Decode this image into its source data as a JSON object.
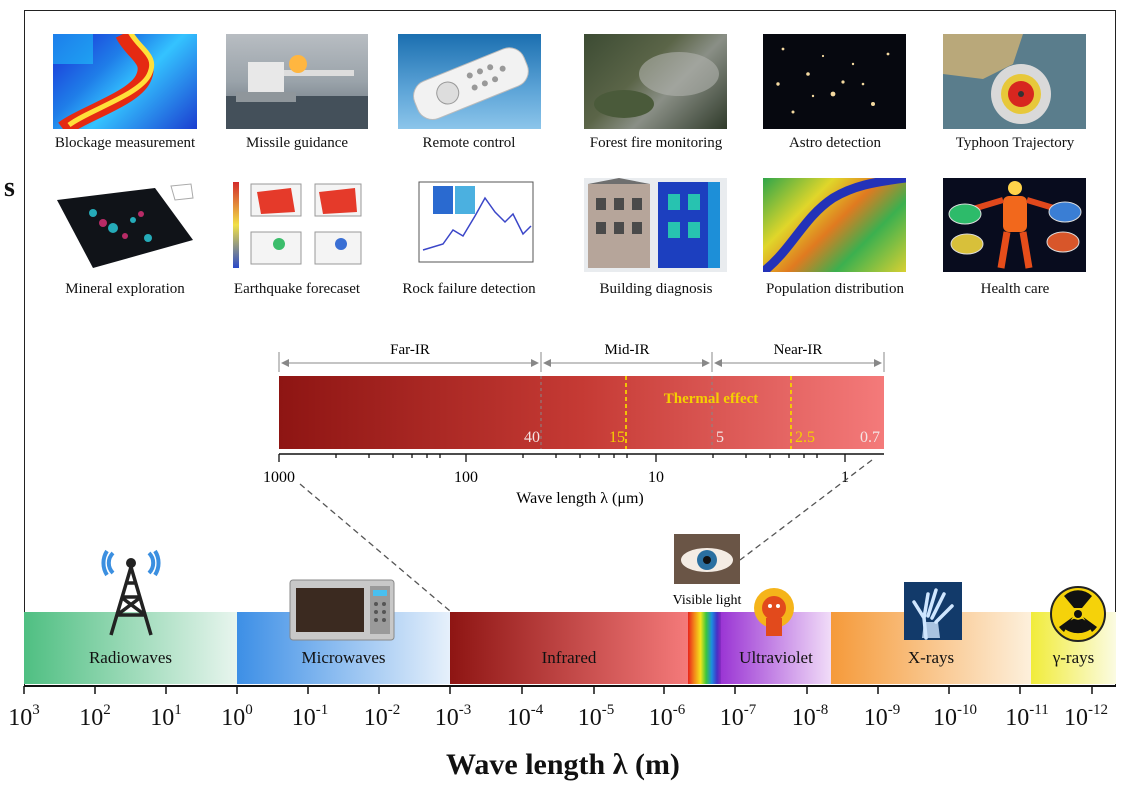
{
  "applications": [
    {
      "id": "blockage",
      "caption": "Blockage measurement",
      "icon": "blockage-thermal-image"
    },
    {
      "id": "missile",
      "caption": "Missile guidance",
      "icon": "missile-launch-photo"
    },
    {
      "id": "remote",
      "caption": "Remote control",
      "icon": "remote-control-photo"
    },
    {
      "id": "forest",
      "caption": "Forest fire monitoring",
      "icon": "forest-fire-satellite-image"
    },
    {
      "id": "astro",
      "caption": "Astro detection",
      "icon": "night-sky-image"
    },
    {
      "id": "typhoon",
      "caption": "Typhoon Trajectory",
      "icon": "typhoon-satellite-image"
    },
    {
      "id": "mineral",
      "caption": "Mineral exploration",
      "icon": "mineral-terrain-map"
    },
    {
      "id": "earthquake",
      "caption": "Earthquake forecaset",
      "icon": "earthquake-heat-maps"
    },
    {
      "id": "rock",
      "caption": "Rock failure detection",
      "icon": "rock-failure-chart"
    },
    {
      "id": "building",
      "caption": "Building diagnosis",
      "icon": "building-thermal-image"
    },
    {
      "id": "population",
      "caption": "Population distribution",
      "icon": "population-heat-map"
    },
    {
      "id": "health",
      "caption": "Health care",
      "icon": "body-thermal-image"
    }
  ],
  "ir_detail": {
    "regions": [
      "Far-IR",
      "Mid-IR",
      "Near-IR"
    ],
    "thermal_label": "Thermal effect",
    "bar_values": [
      "40",
      "15",
      "5",
      "2.5",
      "0.7"
    ],
    "axis_ticks": [
      "1000",
      "100",
      "10",
      "1"
    ],
    "axis_title": "Wave length  λ (μm)",
    "colors": {
      "bar_dark": "#8e1513",
      "bar_light": "#f47a7a",
      "highlight": "#f5d000",
      "arrow": "#888888"
    }
  },
  "spectrum": {
    "bands": [
      "Radiowaves",
      "Microwaves",
      "Infrared",
      "Ultraviolet",
      "X-rays",
      "γ-rays"
    ],
    "visible_label": "Visible light",
    "tick_exponents": [
      "3",
      "2",
      "1",
      "0",
      "-1",
      "-2",
      "-3",
      "-4",
      "-5",
      "-6",
      "-7",
      "-8",
      "-9",
      "-10",
      "-11",
      "-12"
    ],
    "axis_title": "Wave length λ (m)",
    "icons": [
      "radio-tower-icon",
      "microwave-oven-icon",
      "eye-icon",
      "sun-figure-icon",
      "hand-xray-icon",
      "radiation-hazard-icon"
    ]
  },
  "stray_mark": "s"
}
